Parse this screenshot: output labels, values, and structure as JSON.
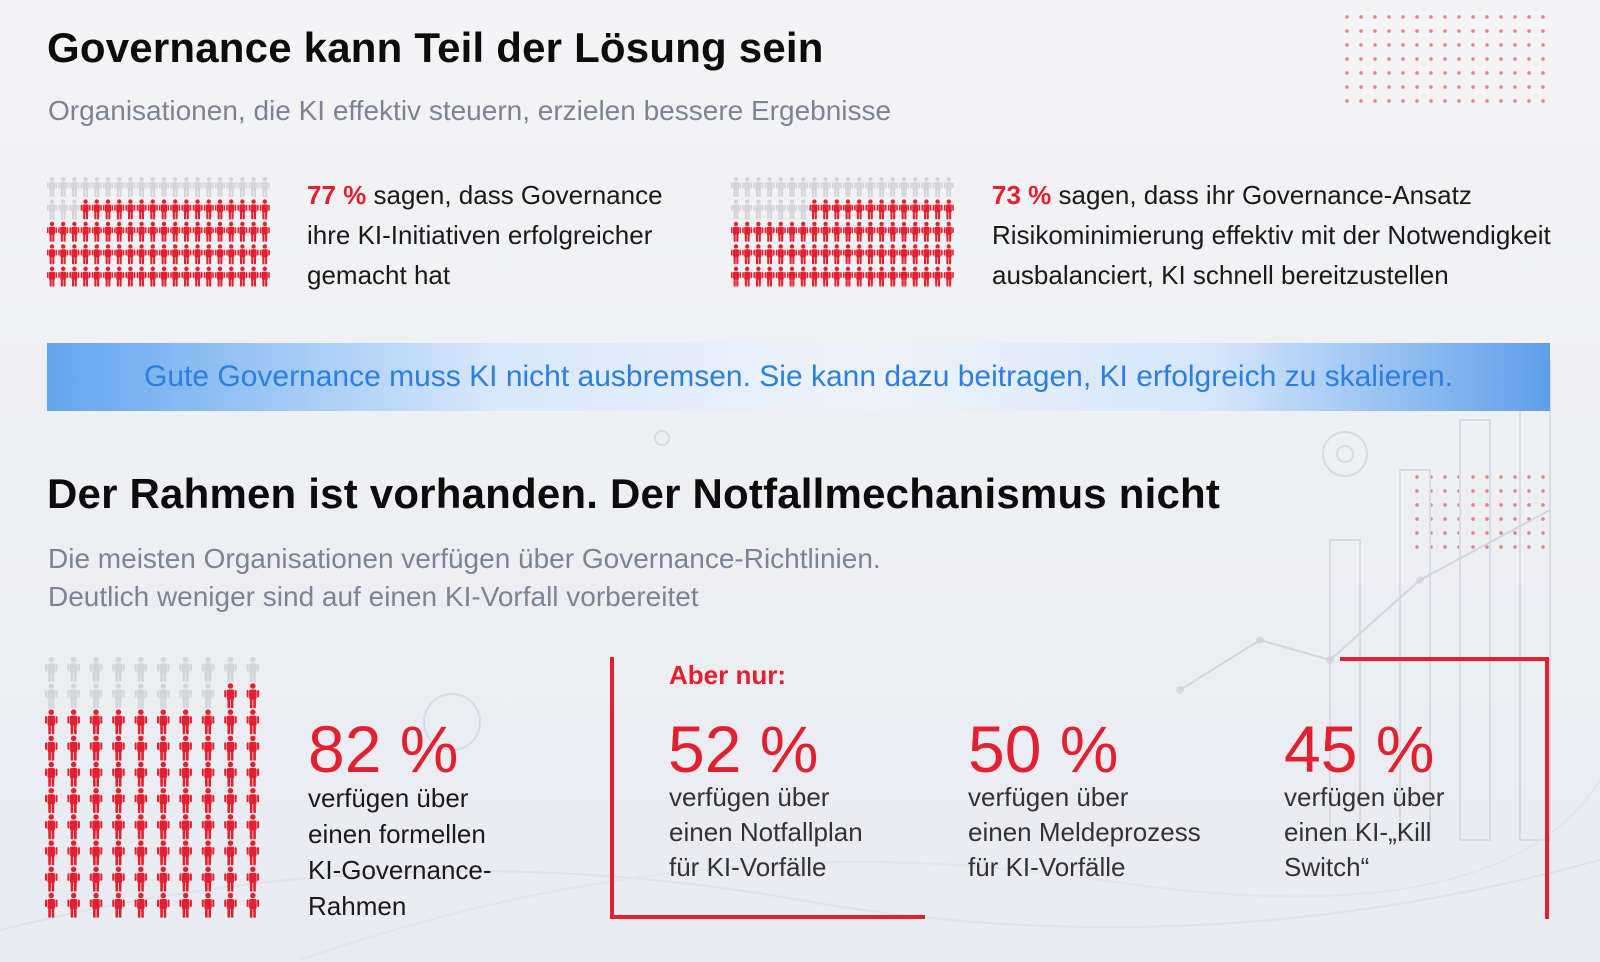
{
  "section1": {
    "title": "Governance kann Teil der Lösung sein",
    "subtitle": "Organisationen, die KI effektiv steuern, erzielen bessere Ergebnisse",
    "stats": [
      {
        "percent_label": "77 %",
        "value": 77,
        "text": " sagen, dass Governance ihre KI-Initiativen erfolgreicher gemacht hat"
      },
      {
        "percent_label": "73 %",
        "value": 73,
        "text": " sagen, dass ihr Governance-Ansatz Risikominimierung effektiv mit der Notwendigkeit ausbalanciert, KI schnell bereitzustellen"
      }
    ]
  },
  "banner": {
    "text": "Gute Governance muss KI nicht ausbremsen. Sie kann dazu beitragen, KI erfolgreich zu skalieren."
  },
  "section2": {
    "title": "Der Rahmen ist vorhanden. Der Notfallmechanismus nicht",
    "subtitle_line1": "Die meisten Organisationen verfügen über Governance-Richtlinien.",
    "subtitle_line2": "Deutlich weniger sind auf einen KI-Vorfall vorbereitet",
    "main_stat": {
      "percent_label": "82 %",
      "value": 82,
      "desc_lines": [
        "verfügen über",
        "einen formellen",
        "KI-Governance-",
        "Rahmen"
      ]
    },
    "aber_nur": "Aber nur:",
    "sub_stats": [
      {
        "percent_label": "52 %",
        "value": 52,
        "desc_lines": [
          "verfügen über",
          "einen Notfallplan",
          "für KI-Vorfälle"
        ]
      },
      {
        "percent_label": "50 %",
        "value": 50,
        "desc_lines": [
          "verfügen über",
          "einen Meldeprozess",
          "für KI-Vorfälle"
        ]
      },
      {
        "percent_label": "45 %",
        "value": 45,
        "desc_lines": [
          "verfügen über",
          "einen KI-„Kill",
          "Switch“"
        ]
      }
    ]
  },
  "colors": {
    "accent_red": "#e3202f",
    "figure_grey": "#d3d5da",
    "banner_blue": "#2a7fe0",
    "subtitle_grey": "#7b8496"
  },
  "icons": [
    "person-icon"
  ]
}
